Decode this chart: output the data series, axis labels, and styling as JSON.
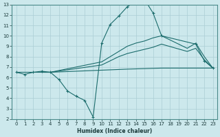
{
  "bg_color": "#cce8ec",
  "grid_color": "#aacdd4",
  "line_color": "#1a6b6b",
  "xlabel": "Humidex (Indice chaleur)",
  "xlim": [
    -0.5,
    23.5
  ],
  "ylim": [
    2,
    13
  ],
  "xticks": [
    0,
    1,
    2,
    3,
    4,
    5,
    6,
    7,
    8,
    9,
    10,
    11,
    12,
    13,
    14,
    15,
    16,
    17,
    18,
    19,
    20,
    21,
    22,
    23
  ],
  "yticks": [
    2,
    3,
    4,
    5,
    6,
    7,
    8,
    9,
    10,
    11,
    12,
    13
  ],
  "lines": [
    {
      "x": [
        0,
        1,
        2,
        3,
        4,
        5,
        6,
        7,
        8,
        9,
        10,
        11,
        12,
        13,
        14,
        15,
        16,
        17,
        21,
        22,
        23
      ],
      "y": [
        6.5,
        6.3,
        6.5,
        6.6,
        6.5,
        5.8,
        4.7,
        4.2,
        3.8,
        2.2,
        9.3,
        11.1,
        11.9,
        12.8,
        13.3,
        13.5,
        12.2,
        10.0,
        9.2,
        7.6,
        6.9
      ],
      "marker": "+"
    },
    {
      "x": [
        3,
        4,
        10,
        11,
        12,
        13,
        14,
        15,
        16,
        17,
        20,
        21,
        22,
        23
      ],
      "y": [
        6.5,
        6.5,
        7.5,
        8.0,
        8.5,
        9.0,
        9.3,
        9.5,
        9.8,
        10.0,
        8.8,
        9.3,
        8.0,
        6.9
      ],
      "marker": null
    },
    {
      "x": [
        3,
        4,
        10,
        11,
        12,
        13,
        14,
        15,
        16,
        17,
        20,
        21,
        22,
        23
      ],
      "y": [
        6.5,
        6.5,
        7.2,
        7.6,
        8.0,
        8.3,
        8.5,
        8.7,
        8.9,
        9.2,
        8.5,
        8.8,
        7.7,
        6.9
      ],
      "marker": null
    },
    {
      "x": [
        0,
        3,
        4,
        10,
        13,
        17,
        20,
        21,
        22,
        23
      ],
      "y": [
        6.5,
        6.5,
        6.5,
        6.7,
        6.8,
        6.9,
        6.9,
        6.9,
        6.9,
        6.9
      ],
      "marker": null
    }
  ]
}
